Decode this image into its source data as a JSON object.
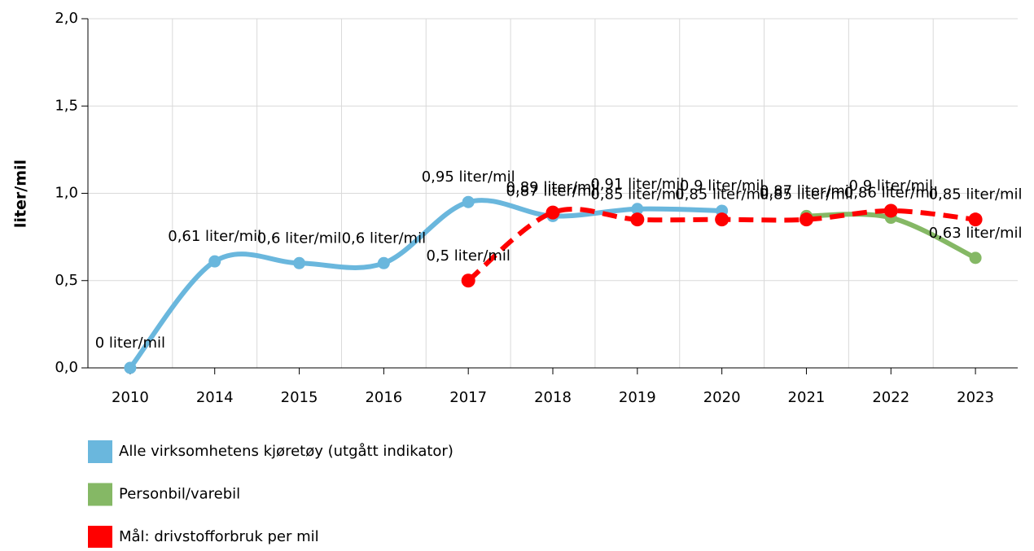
{
  "chart_data": {
    "type": "line",
    "y_label": "liter/mil",
    "categories": [
      "2010",
      "2014",
      "2015",
      "2016",
      "2017",
      "2018",
      "2019",
      "2020",
      "2021",
      "2022",
      "2023"
    ],
    "ylim": [
      0,
      2
    ],
    "yticks": [
      {
        "value": 0,
        "label": "0,0"
      },
      {
        "value": 0.5,
        "label": "0,5"
      },
      {
        "value": 1,
        "label": "1,0"
      },
      {
        "value": 1.5,
        "label": "1,5"
      },
      {
        "value": 2,
        "label": "2,0"
      }
    ],
    "grid": true,
    "series": [
      {
        "name": "Alle virksomhetens kjøretøy (utgått indikator)",
        "color": "#6ab7dd",
        "dashed": false,
        "values": [
          0,
          0.61,
          0.6,
          0.6,
          0.95,
          0.87,
          0.91,
          0.9,
          null,
          null,
          null
        ],
        "value_labels": [
          "0 liter/mil",
          "0,61 liter/mil",
          "0,6 liter/mil",
          "0,6 liter/mil",
          "0,95 liter/mil",
          "0,87 liter/mil",
          "0,91 liter/mil",
          "0,9 liter/mil",
          null,
          null,
          null
        ]
      },
      {
        "name": "Personbil/varebil",
        "color": "#85b865",
        "dashed": false,
        "values": [
          null,
          null,
          null,
          null,
          null,
          null,
          null,
          null,
          0.87,
          0.86,
          0.63
        ],
        "value_labels": [
          null,
          null,
          null,
          null,
          null,
          null,
          null,
          null,
          "0,87 liter/mil",
          "0,86 liter/mil",
          "0,63 liter/mil"
        ]
      },
      {
        "name": "Mål: drivstofforbruk per mil",
        "color": "#ff0000",
        "dashed": true,
        "values": [
          null,
          null,
          null,
          null,
          0.5,
          0.89,
          0.85,
          0.85,
          0.85,
          0.9,
          0.85
        ],
        "value_labels": [
          null,
          null,
          null,
          null,
          "0,5 liter/mil",
          "0,89 liter/mil",
          "0,85 liter/mil",
          "0,85 liter/mil",
          "0,85 liter/mil",
          "0,9 liter/mil",
          "0,85 liter/mil"
        ]
      }
    ]
  }
}
